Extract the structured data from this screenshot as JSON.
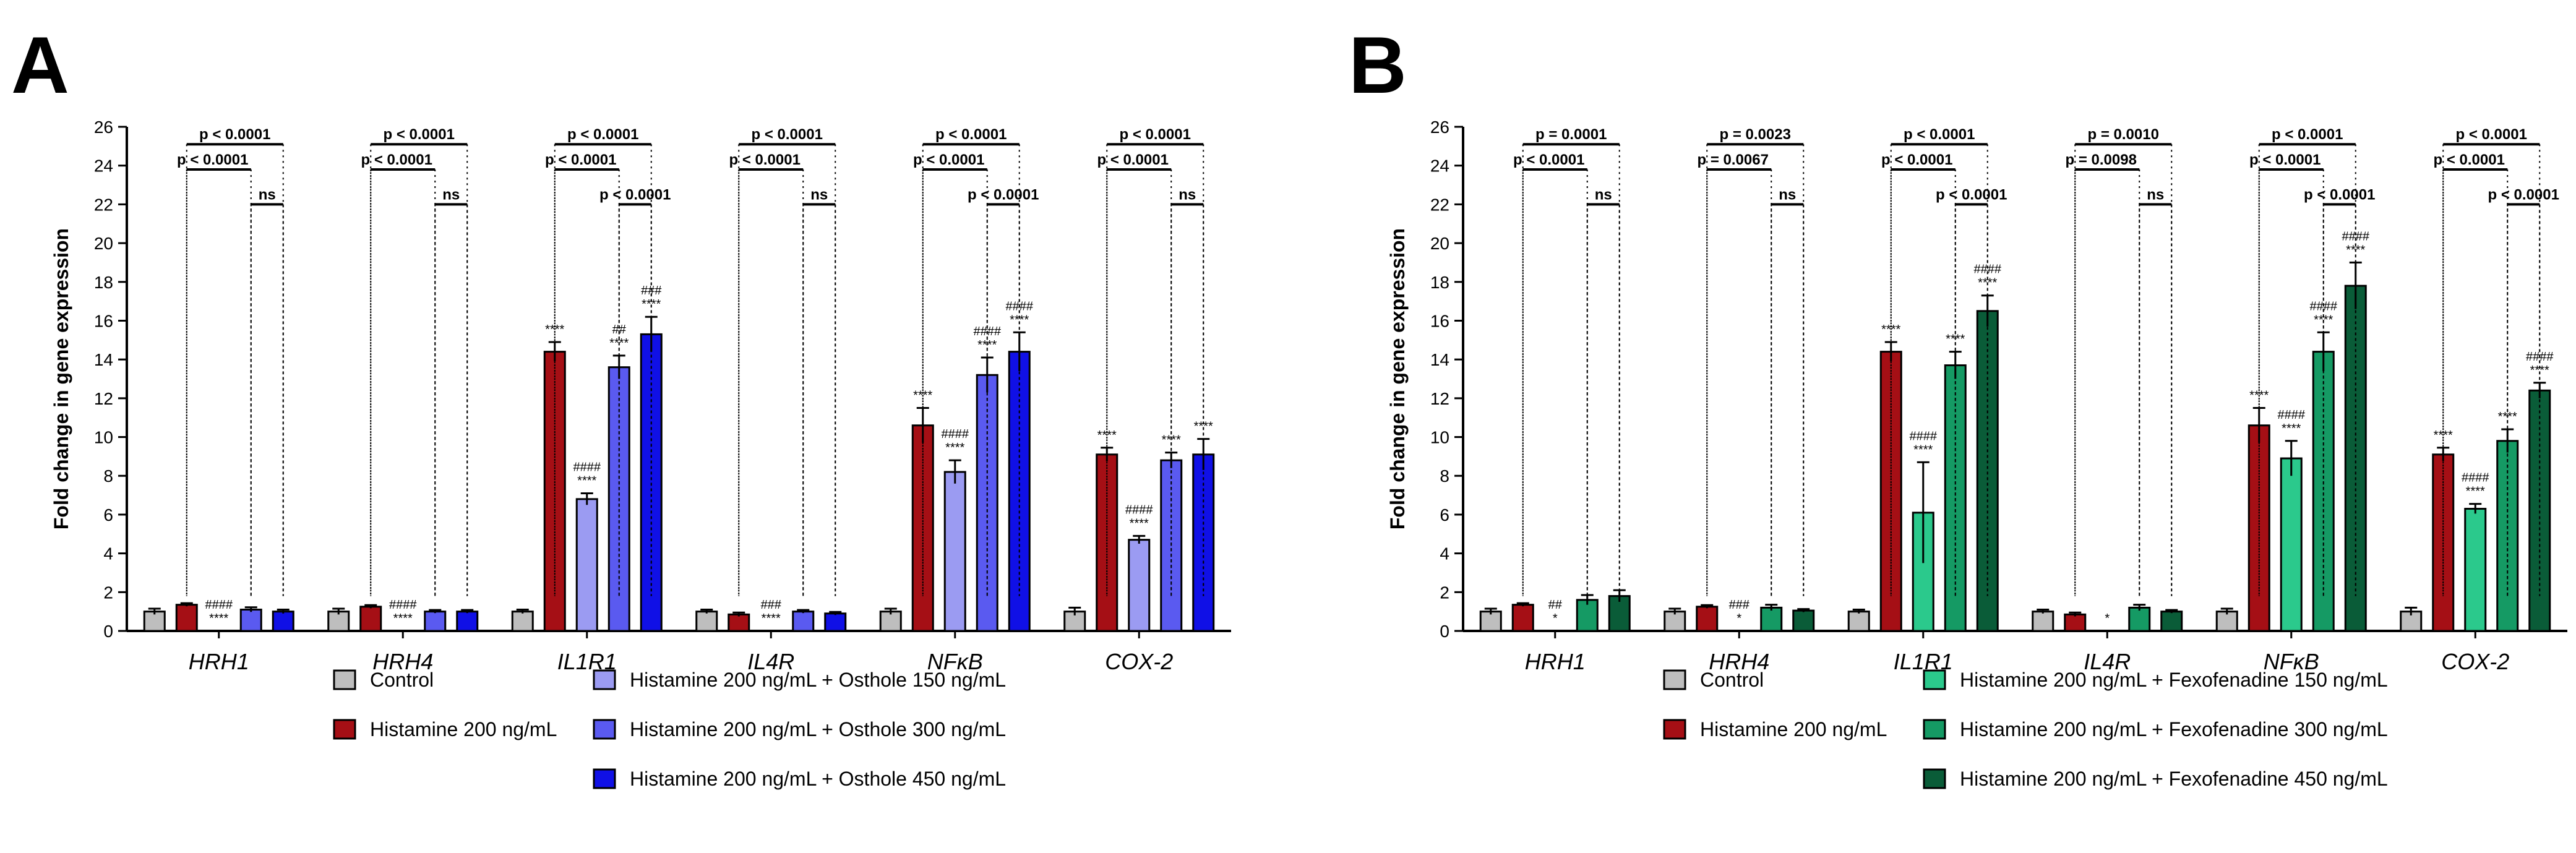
{
  "chart_data": [
    {
      "panel": "A",
      "type": "bar",
      "ylabel": "Fold change in gene expression",
      "ylim": [
        0,
        26
      ],
      "yticks": [
        0,
        2,
        4,
        6,
        8,
        10,
        12,
        14,
        16,
        18,
        20,
        22,
        24,
        26
      ],
      "categories": [
        "HRH1",
        "HRH4",
        "IL1R1",
        "IL4R",
        "NFκB",
        "COX-2"
      ],
      "series": [
        {
          "name": "Control",
          "color": "#bebebe",
          "values": [
            1.0,
            1.0,
            1.0,
            1.0,
            1.0,
            1.0
          ],
          "errors": [
            0.15,
            0.15,
            0.1,
            0.1,
            0.15,
            0.2
          ],
          "sig": [
            "",
            "",
            "",
            "",
            "",
            ""
          ]
        },
        {
          "name": "Histamine 200 ng/mL",
          "color": "#a50f15",
          "values": [
            1.35,
            1.25,
            14.4,
            0.85,
            10.6,
            9.1
          ],
          "errors": [
            0.08,
            0.08,
            0.5,
            0.1,
            0.9,
            0.35
          ],
          "sig": [
            "",
            "",
            "****",
            "",
            "****",
            "****"
          ]
        },
        {
          "name": "Histamine 200 ng/mL + Osthole 150 ng/mL",
          "color": "#9b9bf2",
          "values": [
            0.0,
            0.0,
            6.8,
            0.0,
            8.2,
            4.7
          ],
          "errors": [
            0,
            0,
            0.3,
            0,
            0.6,
            0.2
          ],
          "sig": [
            "####\n****",
            "####\n****",
            "####\n****",
            "###\n****",
            "####\n****",
            "####\n****"
          ]
        },
        {
          "name": "Histamine 200 ng/mL + Osthole 300 ng/mL",
          "color": "#5a5af0",
          "values": [
            1.1,
            1.0,
            13.6,
            1.0,
            13.2,
            8.8
          ],
          "errors": [
            0.12,
            0.08,
            0.6,
            0.08,
            0.9,
            0.4
          ],
          "sig": [
            "",
            "",
            "##\n****",
            "",
            "####\n****",
            "****"
          ]
        },
        {
          "name": "Histamine 200 ng/mL + Osthole 450 ng/mL",
          "color": "#1010e6",
          "values": [
            1.0,
            1.0,
            15.3,
            0.9,
            14.4,
            9.1
          ],
          "errors": [
            0.1,
            0.08,
            0.9,
            0.08,
            1.0,
            0.8
          ],
          "sig": [
            "",
            "",
            "###\n****",
            "",
            "####\n****",
            "****"
          ]
        }
      ],
      "comparisons": [
        [
          "p < 0.0001",
          "p < 0.0001",
          "ns"
        ],
        [
          "p < 0.0001",
          "p < 0.0001",
          "ns"
        ],
        [
          "p < 0.0001",
          "p < 0.0001",
          "p < 0.0001"
        ],
        [
          "p < 0.0001",
          "p < 0.0001",
          "ns"
        ],
        [
          "p < 0.0001",
          "p < 0.0001",
          "p < 0.0001"
        ],
        [
          "p < 0.0001",
          "p < 0.0001",
          "ns"
        ]
      ]
    },
    {
      "panel": "B",
      "type": "bar",
      "ylabel": "Fold change in gene expression",
      "ylim": [
        0,
        26
      ],
      "yticks": [
        0,
        2,
        4,
        6,
        8,
        10,
        12,
        14,
        16,
        18,
        20,
        22,
        24,
        26
      ],
      "categories": [
        "HRH1",
        "HRH4",
        "IL1R1",
        "IL4R",
        "NFκB",
        "COX-2"
      ],
      "series": [
        {
          "name": "Control",
          "color": "#bebebe",
          "values": [
            1.0,
            1.0,
            1.0,
            1.0,
            1.0,
            1.0
          ],
          "errors": [
            0.15,
            0.15,
            0.1,
            0.1,
            0.15,
            0.2
          ],
          "sig": [
            "",
            "",
            "",
            "",
            "",
            ""
          ]
        },
        {
          "name": "Histamine 200 ng/mL",
          "color": "#a50f15",
          "values": [
            1.35,
            1.25,
            14.4,
            0.85,
            10.6,
            9.1
          ],
          "errors": [
            0.08,
            0.08,
            0.5,
            0.1,
            0.9,
            0.35
          ],
          "sig": [
            "",
            "",
            "****",
            "",
            "****",
            "****"
          ]
        },
        {
          "name": "Histamine 200 ng/mL + Fexofenadine 150 ng/mL",
          "color": "#2bc98c",
          "values": [
            0.0,
            0.0,
            6.1,
            0.0,
            8.9,
            6.3
          ],
          "errors": [
            0,
            0,
            2.6,
            0,
            0.9,
            0.25
          ],
          "sig": [
            "##\n*",
            "###\n*",
            "####\n****",
            "*",
            "####\n****",
            "####\n****"
          ]
        },
        {
          "name": "Histamine 200 ng/mL + Fexofenadine 300 ng/mL",
          "color": "#159a64",
          "values": [
            1.6,
            1.2,
            13.7,
            1.2,
            14.4,
            9.8
          ],
          "errors": [
            0.25,
            0.15,
            0.7,
            0.15,
            1.0,
            0.6
          ],
          "sig": [
            "",
            "",
            "****",
            "",
            "####\n****",
            "****"
          ]
        },
        {
          "name": "Histamine 200 ng/mL + Fexofenadine 450 ng/mL",
          "color": "#0a5c38",
          "values": [
            1.8,
            1.05,
            16.5,
            1.0,
            17.8,
            12.4
          ],
          "errors": [
            0.3,
            0.08,
            0.8,
            0.08,
            1.2,
            0.4
          ],
          "sig": [
            "",
            "",
            "####\n****",
            "",
            "####\n****",
            "####\n****"
          ]
        }
      ],
      "comparisons": [
        [
          "p = 0.0001",
          "p < 0.0001",
          "ns"
        ],
        [
          "p = 0.0023",
          "p = 0.0067",
          "ns"
        ],
        [
          "p < 0.0001",
          "p < 0.0001",
          "p < 0.0001"
        ],
        [
          "p = 0.0010",
          "p = 0.0098",
          "ns"
        ],
        [
          "p < 0.0001",
          "p < 0.0001",
          "p < 0.0001"
        ],
        [
          "p < 0.0001",
          "p < 0.0001",
          "p < 0.0001"
        ]
      ]
    }
  ]
}
